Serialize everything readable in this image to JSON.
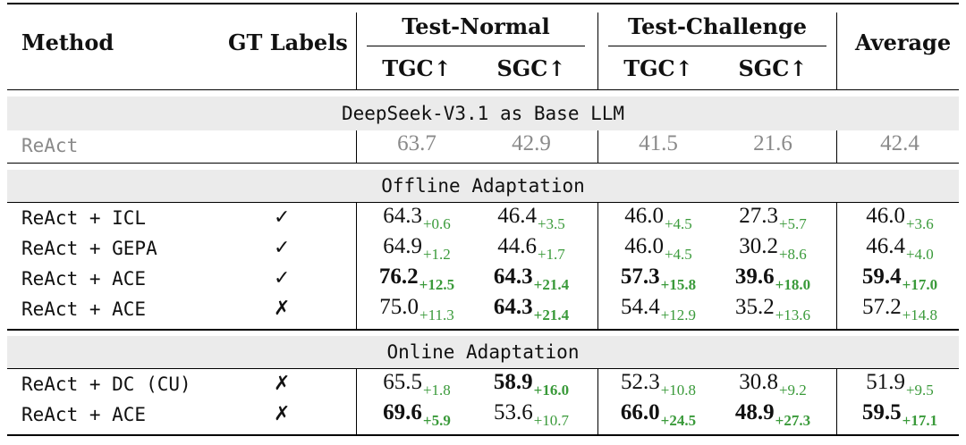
{
  "header": {
    "method": "Method",
    "gt_labels": "GT Labels",
    "test_normal": "Test-Normal",
    "test_challenge": "Test-Challenge",
    "average": "Average",
    "tgc": "TGC↑",
    "sgc": "SGC↑"
  },
  "sections": {
    "base": "DeepSeek-V3.1 as Base LLM",
    "offline": "Offline Adaptation",
    "online": "Online Adaptation"
  },
  "baseline": {
    "method": "ReAct",
    "vals": [
      "63.7",
      "42.9",
      "41.5",
      "21.6",
      "42.4"
    ]
  },
  "offline_rows": [
    {
      "method": "ReAct + ICL",
      "gt": "✓",
      "vals": [
        [
          "64.3",
          "+0.6"
        ],
        [
          "46.4",
          "+3.5"
        ],
        [
          "46.0",
          "+4.5"
        ],
        [
          "27.3",
          "+5.7"
        ],
        [
          "46.0",
          "+3.6"
        ]
      ],
      "bold": [
        false,
        false,
        false,
        false,
        false
      ]
    },
    {
      "method": "ReAct + GEPA",
      "gt": "✓",
      "vals": [
        [
          "64.9",
          "+1.2"
        ],
        [
          "44.6",
          "+1.7"
        ],
        [
          "46.0",
          "+4.5"
        ],
        [
          "30.2",
          "+8.6"
        ],
        [
          "46.4",
          "+4.0"
        ]
      ],
      "bold": [
        false,
        false,
        false,
        false,
        false
      ]
    },
    {
      "method": "ReAct + ACE",
      "gt": "✓",
      "vals": [
        [
          "76.2",
          "+12.5"
        ],
        [
          "64.3",
          "+21.4"
        ],
        [
          "57.3",
          "+15.8"
        ],
        [
          "39.6",
          "+18.0"
        ],
        [
          "59.4",
          "+17.0"
        ]
      ],
      "bold": [
        true,
        true,
        true,
        true,
        true
      ]
    },
    {
      "method": "ReAct + ACE",
      "gt": "✗",
      "vals": [
        [
          "75.0",
          "+11.3"
        ],
        [
          "64.3",
          "+21.4"
        ],
        [
          "54.4",
          "+12.9"
        ],
        [
          "35.2",
          "+13.6"
        ],
        [
          "57.2",
          "+14.8"
        ]
      ],
      "bold": [
        false,
        true,
        false,
        false,
        false
      ]
    }
  ],
  "online_rows": [
    {
      "method": "ReAct + DC (CU)",
      "gt": "✗",
      "vals": [
        [
          "65.5",
          "+1.8"
        ],
        [
          "58.9",
          "+16.0"
        ],
        [
          "52.3",
          "+10.8"
        ],
        [
          "30.8",
          "+9.2"
        ],
        [
          "51.9",
          "+9.5"
        ]
      ],
      "bold": [
        false,
        true,
        false,
        false,
        false
      ]
    },
    {
      "method": "ReAct + ACE",
      "gt": "✗",
      "vals": [
        [
          "69.6",
          "+5.9"
        ],
        [
          "53.6",
          "+10.7"
        ],
        [
          "66.0",
          "+24.5"
        ],
        [
          "48.9",
          "+27.3"
        ],
        [
          "59.5",
          "+17.1"
        ]
      ],
      "bold": [
        true,
        false,
        true,
        true,
        true
      ]
    }
  ]
}
